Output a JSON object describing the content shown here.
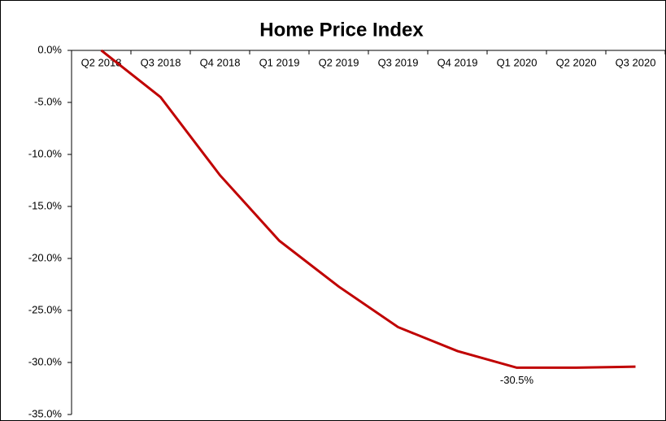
{
  "chart_data": {
    "type": "line",
    "title": "Home Price Index",
    "categories": [
      "Q2 2018",
      "Q3 2018",
      "Q4 2018",
      "Q1 2019",
      "Q2 2019",
      "Q3 2019",
      "Q4 2019",
      "Q1 2020",
      "Q2 2020",
      "Q3 2020"
    ],
    "values": [
      0,
      -4.5,
      -12.0,
      -18.3,
      -22.7,
      -26.6,
      -28.9,
      -30.5,
      -30.5,
      -30.4
    ],
    "value_labels": [
      null,
      null,
      null,
      null,
      null,
      null,
      null,
      "-30.5%",
      null,
      null
    ],
    "color": "#c00000",
    "ylim": [
      -35,
      0
    ],
    "yticks": [
      {
        "value": 0,
        "label": "0.0%"
      },
      {
        "value": -5,
        "label": "-5.0%"
      },
      {
        "value": -10,
        "label": "-10.0%"
      },
      {
        "value": -15,
        "label": "-15.0%"
      },
      {
        "value": -20,
        "label": "-20.0%"
      },
      {
        "value": -25,
        "label": "-25.0%"
      },
      {
        "value": -30,
        "label": "-30.0%"
      },
      {
        "value": -35,
        "label": "-35.0%"
      }
    ]
  }
}
